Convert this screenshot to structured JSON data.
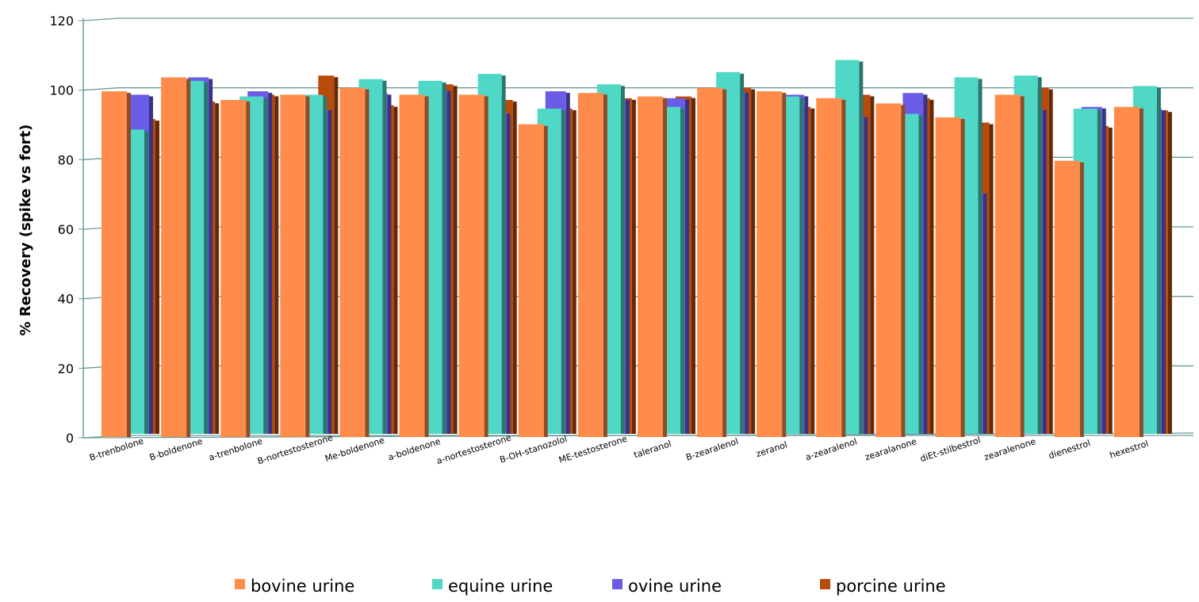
{
  "chart_data": {
    "type": "bar",
    "title": "",
    "xlabel": "",
    "ylabel": "% Recovery (spike vs fort)",
    "ylim": [
      0,
      120
    ],
    "yticks": [
      0,
      20,
      40,
      60,
      80,
      100,
      120
    ],
    "grid": true,
    "three_d": true,
    "legend_position": "bottom",
    "categories": [
      "B-trenbolone",
      "B-boldenone",
      "a-trenbolone",
      "B-nortestosterone",
      "Me-boldenone",
      "a-boldenone",
      "a-nortestosterone",
      "B-OH-stanozolol",
      "ME-testosterone",
      "taleranol",
      "B-zearalenol",
      "zeranol",
      "a-zearalenol",
      "zearalanone",
      "diEt-stilbestrol",
      "zearalenone",
      "dienestrol",
      "hexestrol"
    ],
    "series": [
      {
        "name": "bovine urine",
        "color": "#ff8c4a",
        "values": [
          99,
          103,
          96.5,
          98,
          100,
          98,
          98,
          89.5,
          98.5,
          97.5,
          100,
          99,
          97,
          95.5,
          91.5,
          98,
          79,
          94.5
        ]
      },
      {
        "name": "equine urine",
        "color": "#4fd8c6",
        "values": [
          88,
          102,
          97.5,
          98,
          102.5,
          102,
          104,
          94,
          101,
          94.5,
          104.5,
          97.5,
          108,
          92.5,
          103,
          103.5,
          94,
          100.5
        ]
      },
      {
        "name": "ovine urine",
        "color": "#6b5ce8",
        "values": [
          98,
          103,
          99,
          94,
          98.5,
          99.5,
          93,
          99,
          97,
          97,
          99,
          98,
          92,
          98.5,
          70,
          94,
          94.5,
          94
        ]
      },
      {
        "name": "porcine urine",
        "color": "#b84a0c",
        "values": [
          91,
          96,
          98,
          103.5,
          95,
          101,
          96.5,
          94,
          97,
          97.5,
          100,
          94.5,
          98,
          97,
          90,
          100,
          89,
          93.5
        ]
      }
    ]
  }
}
